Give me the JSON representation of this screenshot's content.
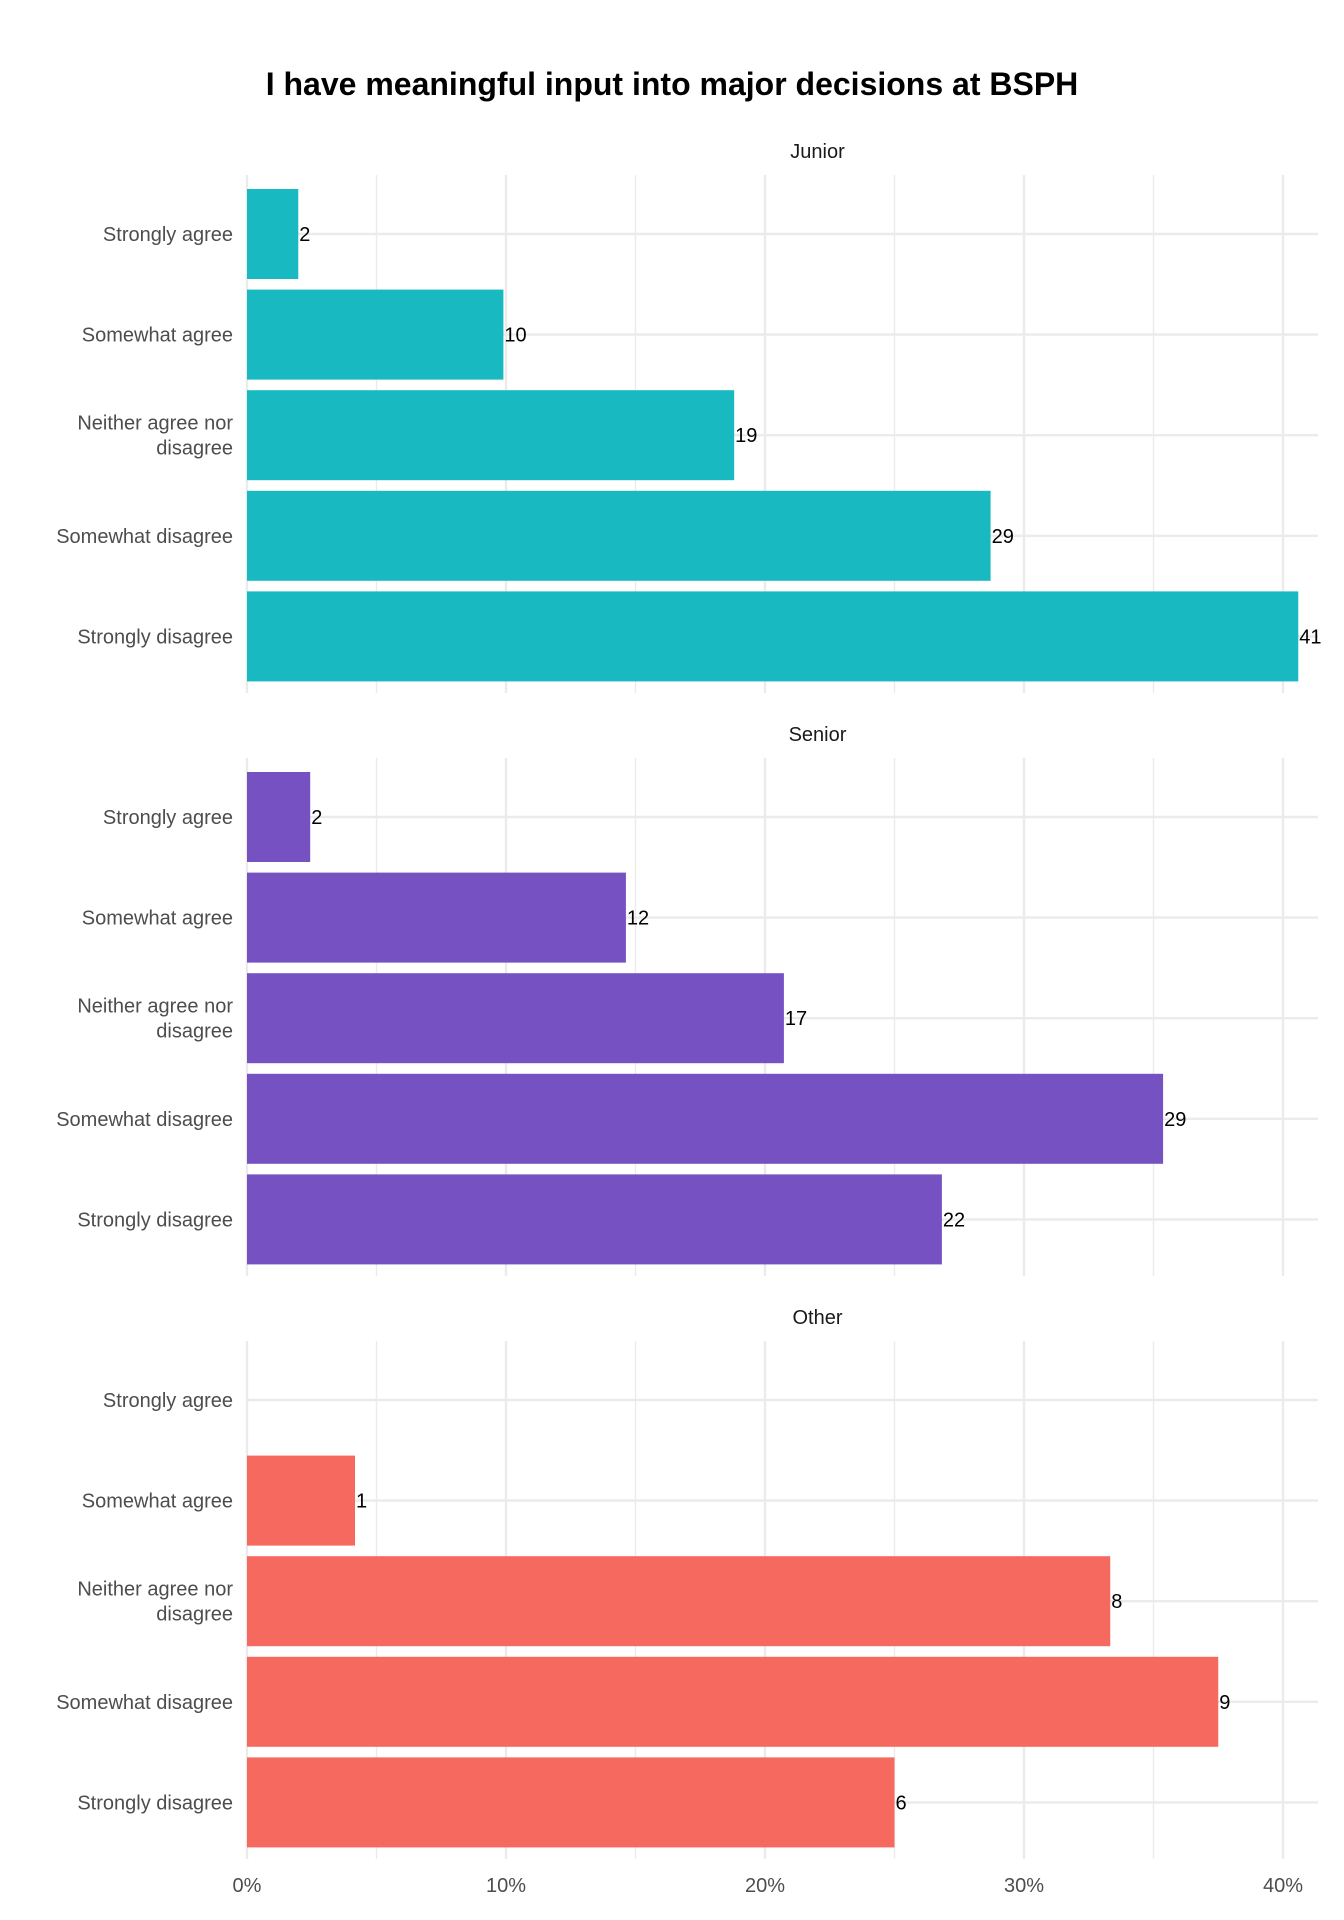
{
  "chart_data": {
    "type": "bar",
    "orientation": "horizontal",
    "title": "I have meaningful input into major decisions at BSPH",
    "xlabel": "",
    "ylabel": "",
    "x_ticks": [
      "0%",
      "10%",
      "20%",
      "30%",
      "40%"
    ],
    "xlim": [
      0,
      0.415
    ],
    "grid": true,
    "legend": "none",
    "categories": [
      [
        "Strongly agree"
      ],
      [
        "Somewhat agree"
      ],
      [
        "Neither agree nor",
        "disagree"
      ],
      [
        "Somewhat disagree"
      ],
      [
        "Strongly disagree"
      ]
    ],
    "panels": [
      {
        "name": "Junior",
        "color": "#19B9C2",
        "values": [
          0.0198,
          0.099,
          0.1881,
          0.2871,
          0.4059
        ],
        "counts": [
          "2",
          "10",
          "19",
          "29",
          "41"
        ]
      },
      {
        "name": "Senior",
        "color": "#7651C2",
        "values": [
          0.0244,
          0.1463,
          0.2073,
          0.3537,
          0.2683
        ],
        "counts": [
          "2",
          "12",
          "17",
          "29",
          "22"
        ]
      },
      {
        "name": "Other",
        "color": "#F5695F",
        "values": [
          0,
          0.0417,
          0.3333,
          0.375,
          0.25
        ],
        "counts": [
          "",
          "1",
          "8",
          "9",
          "6"
        ]
      }
    ]
  }
}
